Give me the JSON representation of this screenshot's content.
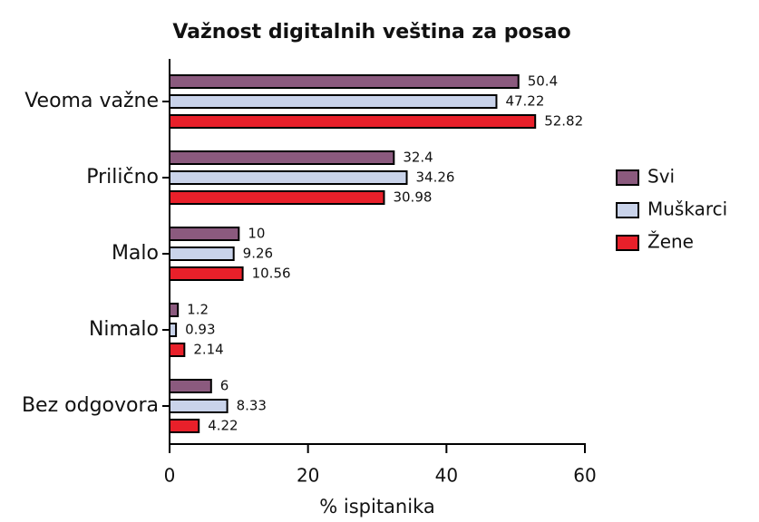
{
  "chart_data": {
    "type": "bar",
    "orientation": "horizontal",
    "title": "Važnost digitalnih veština za posao",
    "xlabel": "% ispitanika",
    "categories": [
      "Veoma važne",
      "Prilično",
      "Malo",
      "Nimalo",
      "Bez odgovora"
    ],
    "series": [
      {
        "name": "Svi",
        "color": "#8b5a7e",
        "values": [
          50.4,
          32.4,
          10,
          1.2,
          6
        ]
      },
      {
        "name": "Muškarci",
        "color": "#c9d3ea",
        "values": [
          47.22,
          34.26,
          9.26,
          0.93,
          8.33
        ]
      },
      {
        "name": "Žene",
        "color": "#e8202a",
        "values": [
          52.82,
          30.98,
          10.56,
          2.14,
          4.22
        ]
      }
    ],
    "xlim": [
      0,
      60
    ],
    "xticks": [
      0,
      20,
      40,
      60
    ],
    "legend": "right"
  }
}
